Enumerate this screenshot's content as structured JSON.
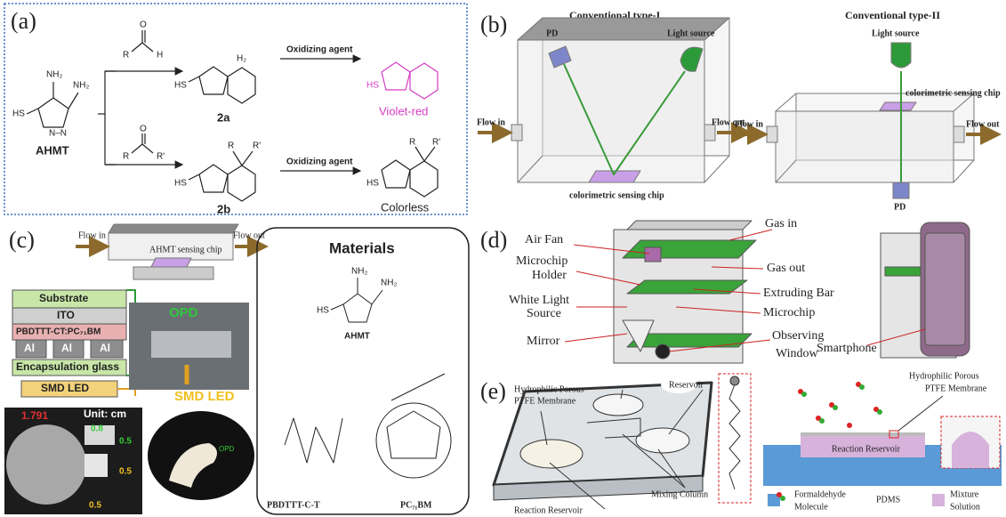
{
  "panel_a": {
    "label": "(a)",
    "ahmt": "AHMT",
    "compound_2a": "2a",
    "compound_2b": "2b",
    "reagent_top": "Oxidizing agent",
    "reagent_bottom": "Oxidizing agent",
    "product_top": "Violet-red",
    "product_bottom": "Colorless",
    "atoms": [
      "NH₂",
      "NH₂",
      "HS",
      "N–N",
      "R",
      "O",
      "H",
      "R'",
      "H₂"
    ]
  },
  "panel_b": {
    "label": "(b)",
    "type1_title": "Conventional type-I",
    "type2_title": "Conventional type-II",
    "pd_1": "PD",
    "light_source_1": "Light source",
    "flow_in_1": "Flow in",
    "flow_out_1": "Flow out",
    "chip_1": "colorimetric sensing chip",
    "light_source_2": "Light source",
    "chip_2": "colorimetric sensing chip",
    "flow_in_2": "Flow in",
    "flow_out_2": "Flow out",
    "pd_2": "PD"
  },
  "panel_c": {
    "label": "(c)",
    "flow_in": "Flow in",
    "flow_out": "Flow out",
    "sensing_chip": "AHMT sensing chip",
    "layers": [
      "Substrate",
      "ITO",
      "PBDTTT-CT:PC₇₁BM",
      "Al",
      "Al",
      "Al",
      "Encapsulation glass",
      "SMD LED"
    ],
    "opd_photo": "OPD",
    "smd_led_photo": "SMD LED",
    "coin_size": "1.791",
    "unit": "Unit: cm",
    "dims": [
      "0.8",
      "0.5",
      "0.5",
      "0.5"
    ],
    "opd_glove": "OPD",
    "materials_title": "Materials",
    "atoms": [
      "NH₂",
      "NH₂",
      "HS"
    ],
    "ahmt": "AHMT",
    "polymer": "PBDTTT-C-T",
    "fullerene": "PC₇₁BM"
  },
  "panel_d": {
    "label": "(d)",
    "labels": [
      "Gas in",
      "Air Fan",
      "Microchip",
      "Holder",
      "Gas out",
      "Extruding Bar",
      "White Light",
      "Source",
      "Microchip",
      "Mirror",
      "Observing",
      "Window",
      "Smartphone"
    ]
  },
  "panel_e": {
    "label": "(e)",
    "left_labels": [
      "Hydrophilic Porous",
      "PTFE Membrane",
      "Reservoir",
      "Reaction Reservoir",
      "Mixing Column"
    ],
    "right_labels": [
      "Hydrophilic Porous",
      "PTFE Membrane",
      "Reaction Reservoir"
    ],
    "legend": [
      "Formaldehyde",
      "Molecule",
      "PDMS",
      "Mixture",
      "Solution"
    ]
  }
}
